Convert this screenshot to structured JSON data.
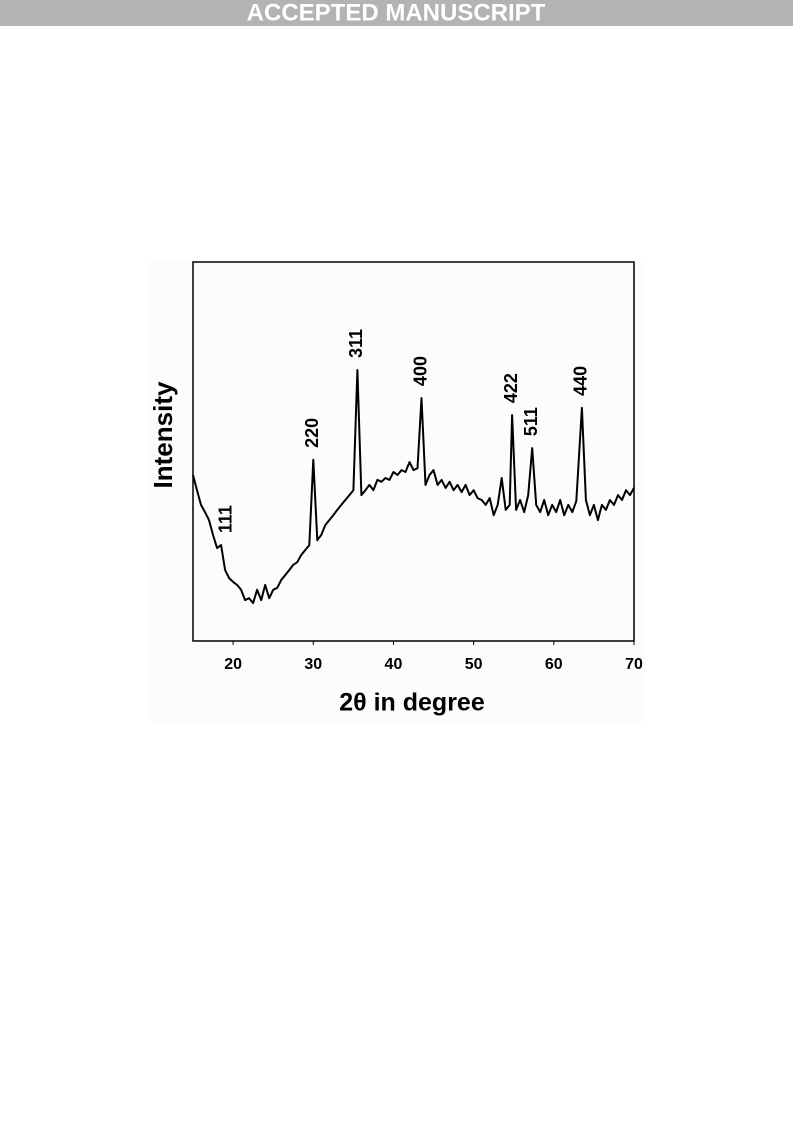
{
  "banner": "ACCEPTED MANUSCRIPT",
  "chart_data": {
    "type": "line",
    "xlabel": "2θ  in degree",
    "ylabel": "Intensity",
    "color": "#000000",
    "xlim": [
      15,
      70
    ],
    "ylim": [
      0,
      100
    ],
    "xticks": [
      20,
      30,
      40,
      50,
      60,
      70
    ],
    "x": [
      15,
      15.5,
      16,
      16.5,
      17,
      17.5,
      18,
      18.5,
      19,
      19.5,
      20,
      20.5,
      21,
      21.5,
      22,
      22.5,
      23,
      23.5,
      24,
      24.5,
      25,
      25.5,
      26,
      26.5,
      27,
      27.5,
      28,
      28.5,
      29,
      29.5,
      30,
      30.5,
      31,
      31.5,
      32,
      32.5,
      33,
      33.5,
      34,
      34.5,
      35,
      35.5,
      36,
      36.5,
      37,
      37.5,
      38,
      38.5,
      39,
      39.5,
      40,
      40.5,
      41,
      41.5,
      42,
      42.5,
      43,
      43.5,
      44,
      44.5,
      45,
      45.5,
      46,
      46.5,
      47,
      47.5,
      48,
      48.5,
      49,
      49.5,
      50,
      50.5,
      51,
      51.5,
      52,
      52.5,
      53,
      53.5,
      54,
      54.5,
      54.8,
      55.3,
      55.8,
      56.3,
      56.8,
      57.3,
      57.8,
      58.3,
      58.8,
      59.3,
      59.8,
      60.3,
      60.8,
      61.3,
      61.8,
      62.3,
      62.8,
      63.5,
      64,
      64.5,
      65,
      65.5,
      66,
      66.5,
      67,
      67.5,
      68,
      68.5,
      69,
      69.5,
      70
    ],
    "values": [
      43.8,
      39.8,
      35.9,
      34,
      31.9,
      28,
      24.5,
      25.3,
      18.7,
      16.6,
      15.6,
      14.8,
      13.5,
      10.8,
      11.3,
      10,
      13.5,
      10.8,
      14.8,
      11.3,
      13.5,
      14,
      16.1,
      17.4,
      18.7,
      20.1,
      20.8,
      22.7,
      24,
      25.3,
      47.8,
      26.6,
      28,
      30.6,
      31.9,
      33.2,
      34.6,
      35.9,
      37.2,
      38.5,
      39.8,
      71.5,
      38.5,
      39.8,
      41.2,
      39.8,
      42.5,
      42,
      43,
      42.5,
      44.6,
      43.8,
      45.1,
      44.6,
      47.2,
      45.1,
      45.6,
      64.1,
      41.2,
      43.8,
      45.1,
      41.2,
      42.5,
      40.4,
      42,
      39.8,
      41.2,
      39.3,
      41.2,
      38.5,
      39.8,
      37.7,
      37.2,
      35.9,
      37.7,
      33.2,
      35.9,
      43,
      34.6,
      35.9,
      59.6,
      34.6,
      37.2,
      34,
      38.5,
      50.9,
      35.9,
      34,
      37.2,
      33.2,
      35.9,
      34,
      37.2,
      33.2,
      35.9,
      34,
      36.9,
      61.5,
      37.2,
      33.2,
      35.9,
      31.9,
      35.9,
      34.6,
      37.2,
      35.9,
      38.5,
      37.2,
      39.8,
      38.5,
      40.4
    ],
    "annotations": [
      {
        "text": "111",
        "x": 19.2
      },
      {
        "text": "220",
        "x": 30
      },
      {
        "text": "311",
        "x": 35.5
      },
      {
        "text": "400",
        "x": 43.5
      },
      {
        "text": "422",
        "x": 54.8
      },
      {
        "text": "511",
        "x": 57.3
      },
      {
        "text": "440",
        "x": 63.5
      }
    ]
  }
}
